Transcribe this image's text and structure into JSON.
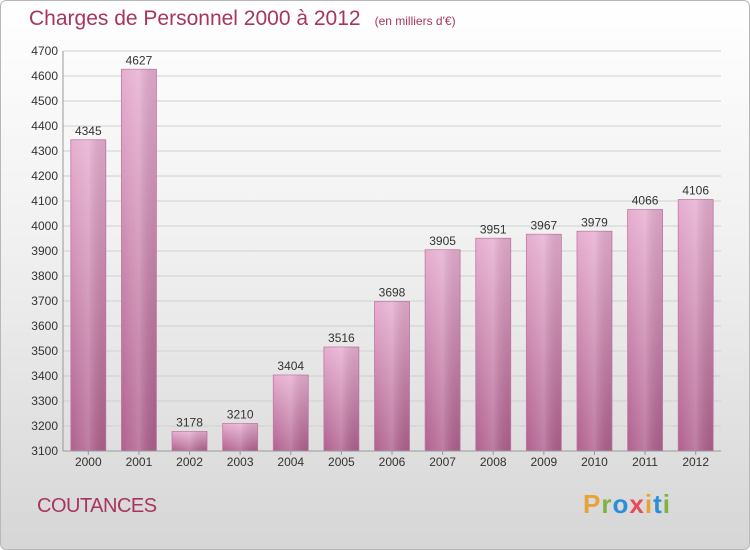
{
  "title": "Charges de Personnel 2000 à 2012",
  "subtitle": "(en milliers d'€)",
  "location": "COUTANCES",
  "logo": {
    "letters": [
      "P",
      "r",
      "o",
      "x",
      "i",
      "t",
      "i"
    ],
    "colors": [
      "#e8a23a",
      "#7cb342",
      "#2a8fd8",
      "#e84a5a",
      "#e8a23a",
      "#2a8fd8",
      "#7cb342"
    ]
  },
  "chart_data": {
    "type": "bar",
    "title": "Charges de Personnel 2000 à 2012",
    "subtitle": "(en milliers d'€)",
    "categories": [
      "2000",
      "2001",
      "2002",
      "2003",
      "2004",
      "2005",
      "2006",
      "2007",
      "2008",
      "2009",
      "2010",
      "2011",
      "2012"
    ],
    "values": [
      4345,
      4627,
      3178,
      3210,
      3404,
      3516,
      3698,
      3905,
      3951,
      3967,
      3979,
      4066,
      4106
    ],
    "ylim": [
      3100,
      4700
    ],
    "yticks": [
      3100,
      3200,
      3300,
      3400,
      3500,
      3600,
      3700,
      3800,
      3900,
      4000,
      4100,
      4200,
      4300,
      4400,
      4500,
      4600,
      4700
    ],
    "grid": true,
    "bar_color": "#d98fb6"
  }
}
